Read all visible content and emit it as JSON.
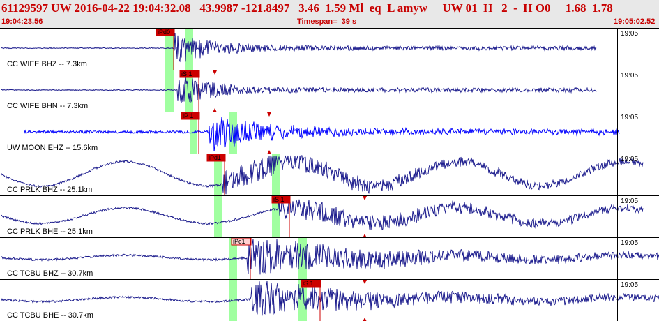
{
  "header": {
    "title": "61129597 UW 2016-04-22 19:04:32.08   43.9987 -121.8497   3.46  1.59 Ml  eq  L amyw     UW 01  H   2  -  H O0     1.68  1.78",
    "start_time": "19:04:23.56",
    "timespan": "Timespan=  39 s",
    "end_time": "19:05:02.52"
  },
  "colors": {
    "trace": "#1a1a8c",
    "trace_alt": "#0000ff",
    "pick": "#cc0000",
    "window": "#80ff80",
    "header_text": "#c80000"
  },
  "panels": [
    {
      "label": "CC WIFE BHZ -- 7.3km",
      "time": "19:05",
      "picks": [
        "iPd0"
      ]
    },
    {
      "label": "CC WIFE BHN -- 7.3km",
      "time": "19:05",
      "picks": [
        "iS 1"
      ]
    },
    {
      "label": "UW MOON EHZ -- 15.6km",
      "time": "19:05",
      "picks": [
        "iP 1"
      ]
    },
    {
      "label": "CC PRLK BHZ -- 25.1km",
      "time": "19:05",
      "picks": [
        "iPd1"
      ]
    },
    {
      "label": "CC PRLK BHE -- 25.1km",
      "time": "19:05",
      "picks": [
        "iS 1"
      ]
    },
    {
      "label": "CC TCBU BHZ -- 30.7km",
      "time": "19:05",
      "picks": [
        "iPc1"
      ]
    },
    {
      "label": "CC TCBU BHE -- 30.7km",
      "time": "19:05",
      "picks": [
        "iS 1"
      ]
    }
  ]
}
